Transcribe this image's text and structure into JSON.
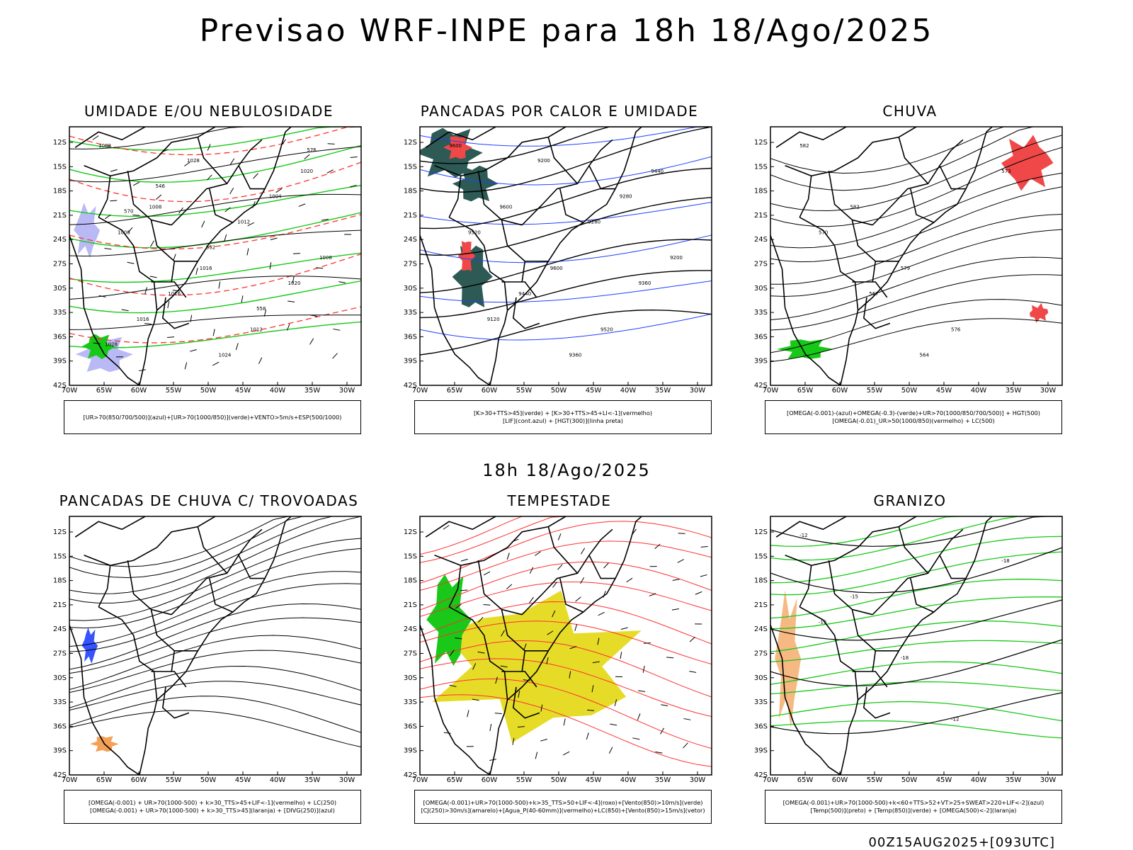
{
  "header": {
    "title": "Previsao WRF-INPE  para 18h 18/Ago/2025"
  },
  "middle": {
    "title": "18h 18/Ago/2025"
  },
  "footer": {
    "stamp": "00Z15AUG2025+[093UTC]"
  },
  "axes": {
    "lat_labels": [
      "12S",
      "15S",
      "18S",
      "21S",
      "24S",
      "27S",
      "30S",
      "33S",
      "36S",
      "39S",
      "42S"
    ],
    "lon_labels": [
      "70W",
      "65W",
      "60W",
      "55W",
      "50W",
      "45W",
      "40W",
      "35W",
      "30W"
    ]
  },
  "colors": {
    "humidity_blue": "#b9b9f5",
    "humidity_green": "#18c818",
    "storm_yellow": "#e6dc28",
    "storm_green": "#19c819",
    "heat_teal": "#2e5a55",
    "heat_red": "#f04848",
    "contour_red": "#ff3030",
    "contour_black": "#000000",
    "contour_blue": "#2040ff",
    "orange": "#f08a30"
  },
  "panels": [
    {
      "title": "UMIDADE E/OU NEBULOSIDADE",
      "legend": [
        "[UR>70(850/700/500)](azul)+[UR>70(1000/850)](verde)+VENTO>5m/s+ESP(500/1000)"
      ],
      "labels": [
        "1008",
        "1008",
        "1016",
        "1012",
        "1020",
        "1008",
        "1016",
        "1024",
        "1004",
        "1008",
        "1016",
        "1028",
        "1012",
        "1020",
        "1028",
        "546",
        "552",
        "558",
        "576",
        "570"
      ]
    },
    {
      "title": "PANCADAS POR CALOR E UMIDADE",
      "legend": [
        "[K>30+TTS>45](verde) + [K>30+TTS>45+LI<-1](vermelho)",
        "[LIF](cont.azul) + [HGT(300)](linha preta)"
      ],
      "labels": [
        "9600",
        "9600",
        "9600",
        "9520",
        "9440",
        "9520",
        "9440",
        "9360",
        "9280",
        "9200",
        "9120",
        "9200",
        "9280",
        "9360"
      ]
    },
    {
      "title": "CHUVA",
      "legend": [
        "[OMEGA(-0.001)-(azul)+OMEGA(-0.3)-(verde)+UR>70(1000/850/700/500)] + HGT(500)",
        "[OMEGA(-0.01)_UR>50(1000/850)(vermelho) + LC(500)"
      ],
      "labels": [
        "582",
        "582",
        "579",
        "576",
        "573",
        "570",
        "567",
        "564"
      ]
    },
    {
      "title": "PANCADAS DE CHUVA C/ TROVOADAS",
      "legend": [
        "[OMEGA(-0.001) + UR>70(1000-500) + k>30_TTS>45+LIF<-1](vermelho) + LC(250)",
        "[OMEGA(-0.001) + UR>70(1000-500) + k>30_TTS>45](laranja) + [DIVG(250)](azul)"
      ],
      "labels": []
    },
    {
      "title": "TEMPESTADE",
      "legend": [
        "[OMEGA(-0.001)+UR>70(1000-500)+k>35_TTS>50+LIF<-4](roxo)+[Vento(850)>10m/s](verde)",
        "[CJ(250)>30m/s](amarelo)+[Agua_P(40-60mm)](vermelho)+LC(850)+[Vento(850)>15m/s](vetor)"
      ],
      "labels": []
    },
    {
      "title": "GRANIZO",
      "legend": [
        "[OMEGA(-0.001)+UR>70(1000-500)+k<60+TTS>52+VT>25+SWEAT>220+LIF<-2](azul)",
        "[Temp(500)](preto) + [Temp(850)](verde) + [OMEGA(500)<-2](laranja)"
      ],
      "labels": [
        "-12",
        "-15",
        "-18",
        "-12",
        "-18",
        "-15"
      ]
    }
  ]
}
